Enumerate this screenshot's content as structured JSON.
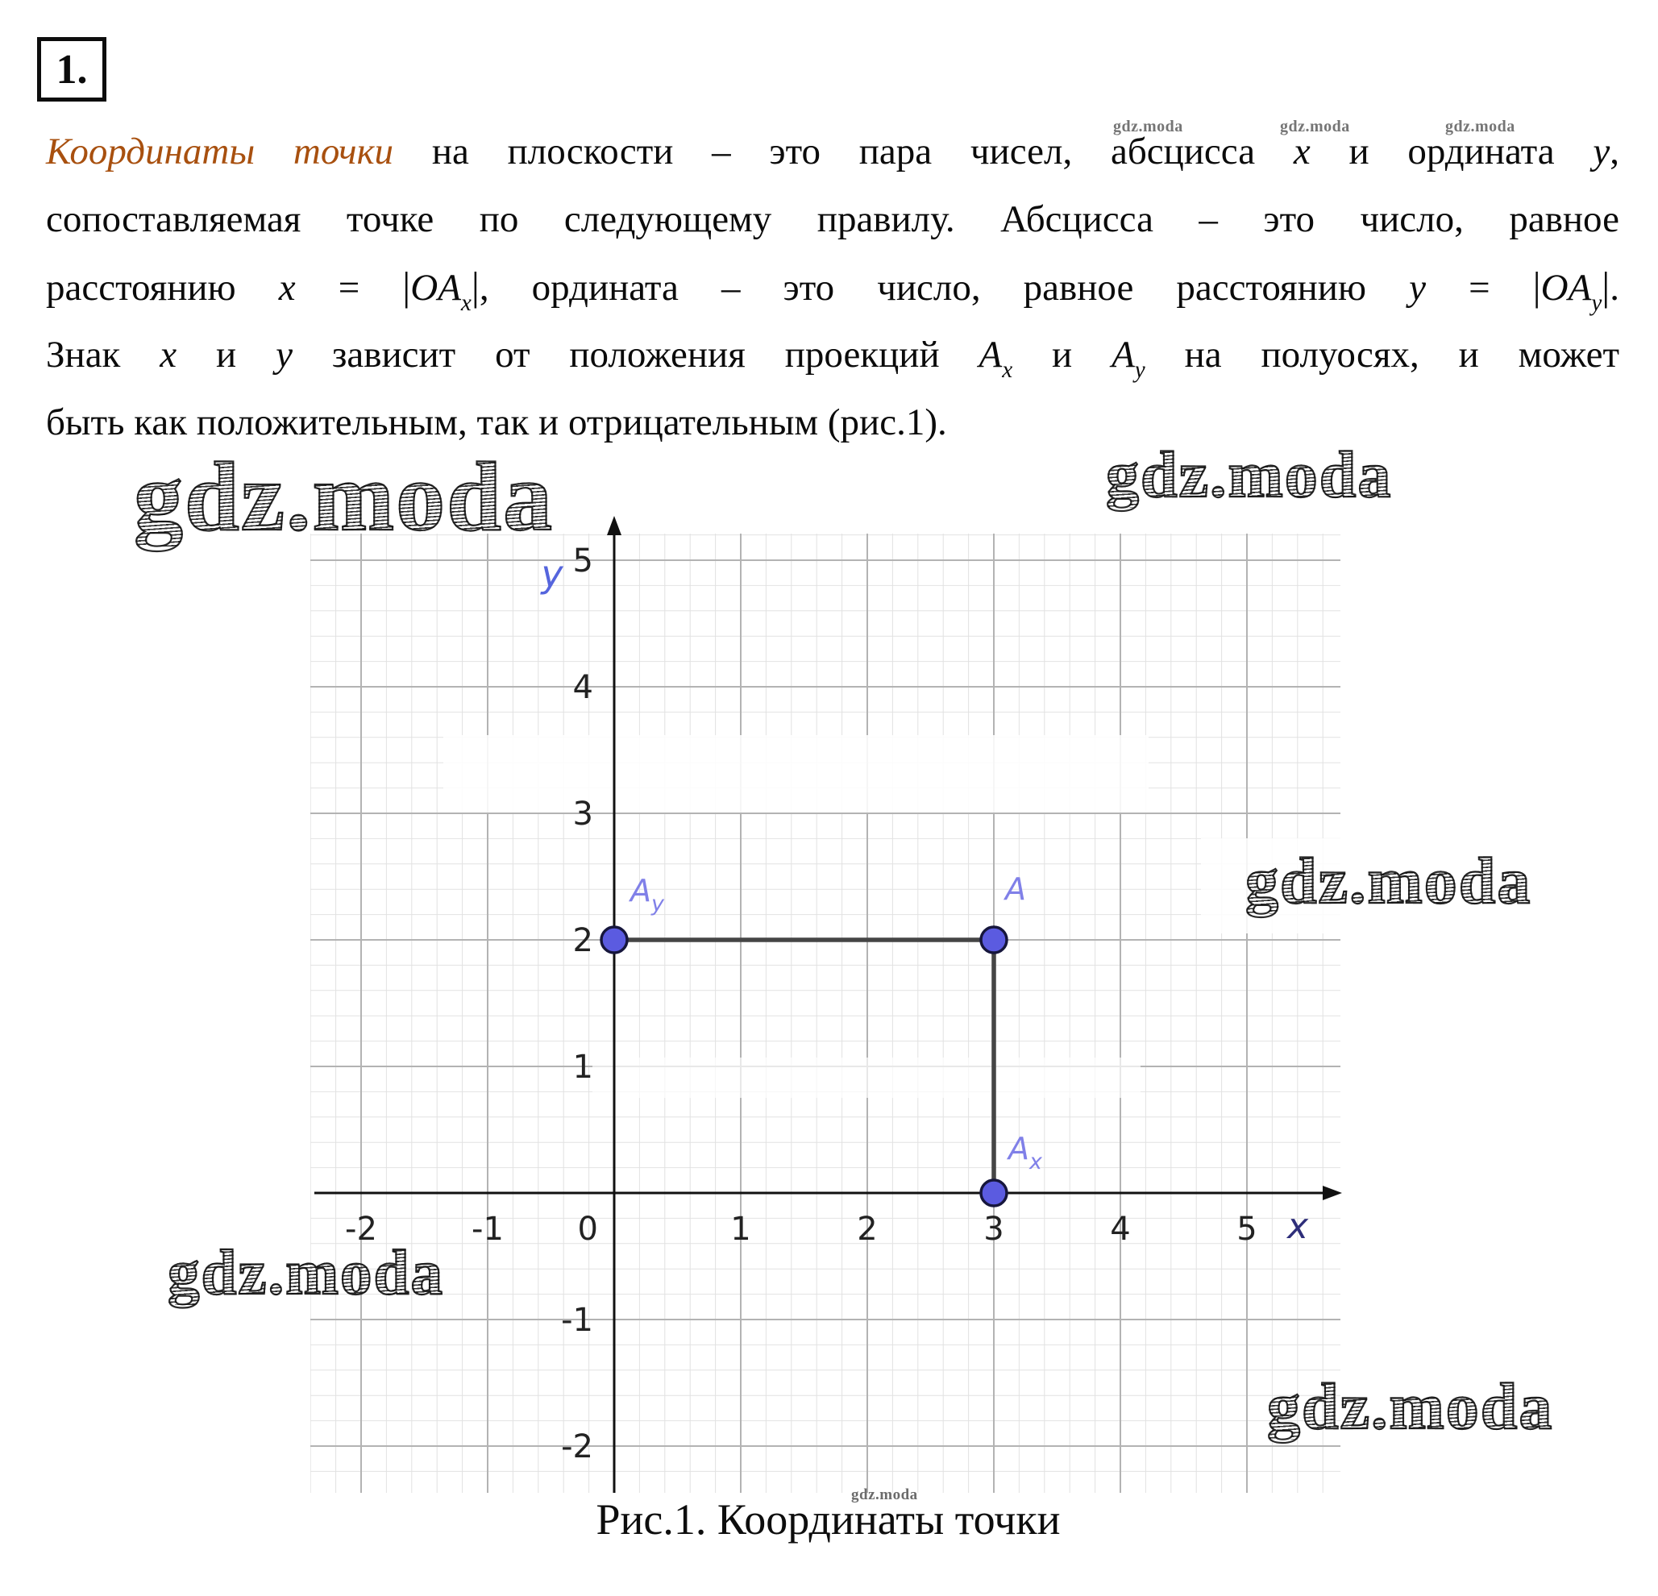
{
  "page": {
    "section_number": "1.",
    "paragraph": [
      [
        {
          "t": "Координаты точки",
          "s": "term"
        },
        {
          "t": " на плоскости – это пара чисел, абсцисса ",
          "s": "p"
        },
        {
          "t": "x",
          "s": "m"
        },
        {
          "t": " и ордината ",
          "s": "p"
        },
        {
          "t": "y",
          "s": "m"
        },
        {
          "t": ",",
          "s": "p"
        }
      ],
      [
        {
          "t": "сопоставляемая точке по следующему правилу. Абсцисса – это число, равное",
          "s": "p"
        }
      ],
      [
        {
          "t": "расстоянию ",
          "s": "p"
        },
        {
          "t": "x",
          "s": "m"
        },
        {
          "t": " = ",
          "s": "p"
        },
        {
          "t": "|",
          "s": "bar"
        },
        {
          "t": "OA",
          "s": "m"
        },
        {
          "t": "x",
          "s": "msub"
        },
        {
          "t": "|",
          "s": "bar"
        },
        {
          "t": ", ордината – это число, равное расстоянию ",
          "s": "p"
        },
        {
          "t": "y",
          "s": "m"
        },
        {
          "t": " = ",
          "s": "p"
        },
        {
          "t": "|",
          "s": "bar"
        },
        {
          "t": "OA",
          "s": "m"
        },
        {
          "t": "y",
          "s": "msub"
        },
        {
          "t": "|",
          "s": "bar"
        },
        {
          "t": ".",
          "s": "p"
        }
      ],
      [
        {
          "t": "Знак ",
          "s": "p"
        },
        {
          "t": "x",
          "s": "m"
        },
        {
          "t": " и ",
          "s": "p"
        },
        {
          "t": "y",
          "s": "m"
        },
        {
          "t": " зависит от положения проекций ",
          "s": "p"
        },
        {
          "t": "A",
          "s": "m"
        },
        {
          "t": "x",
          "s": "msub"
        },
        {
          "t": " и ",
          "s": "p"
        },
        {
          "t": "A",
          "s": "m"
        },
        {
          "t": "y",
          "s": "msub"
        },
        {
          "t": " на полуосях, и может",
          "s": "p"
        }
      ],
      [
        {
          "t": "быть как положительным, так и отрицательным (рис.1).",
          "s": "p"
        }
      ]
    ]
  },
  "watermarks": {
    "small": "gdz.moda",
    "big": "gdz.moda"
  },
  "chart_data": {
    "type": "scatter",
    "title": "Рис.1. Координаты точки",
    "x_axis_label": "x",
    "y_axis_label": "y",
    "xlim": [
      -2.4,
      5.75
    ],
    "ylim": [
      -2.35,
      5.35
    ],
    "x_ticks": [
      -2,
      -1,
      0,
      1,
      2,
      3,
      4,
      5
    ],
    "y_ticks": [
      5,
      4,
      3,
      2,
      1,
      -1,
      -2
    ],
    "grid": {
      "minor_step": 0.2,
      "major_step": 1,
      "minor_on": true,
      "major_on": true
    },
    "points": [
      {
        "label": "A",
        "label_main": "A",
        "label_sub": "",
        "x": 3,
        "y": 2
      },
      {
        "label": "A_y",
        "label_main": "A",
        "label_sub": "y",
        "x": 0,
        "y": 2
      },
      {
        "label": "A_x",
        "label_main": "A",
        "label_sub": "x",
        "x": 3,
        "y": 0
      }
    ],
    "segments": [
      [
        [
          0,
          2
        ],
        [
          3,
          2
        ]
      ],
      [
        [
          3,
          2
        ],
        [
          3,
          0
        ]
      ]
    ],
    "colors": {
      "grid_minor": "#e2e2e2",
      "grid_major": "#b3b3b3",
      "axis": "#111111",
      "tick": "#222222",
      "x_label": "#2e2e7a",
      "y_label": "#5565dd",
      "point_fill": "#5b5be0",
      "point_stroke": "#16163c",
      "point_label": "#8080e8",
      "segment": "#454545"
    }
  }
}
